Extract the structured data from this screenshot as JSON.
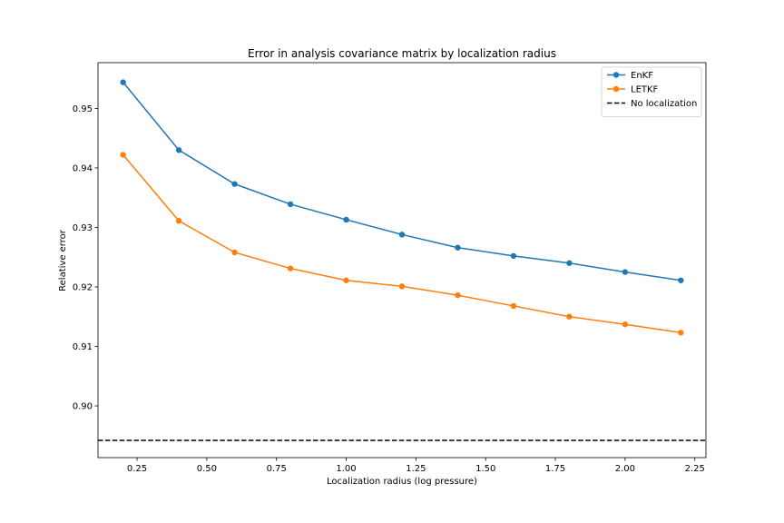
{
  "chart_data": {
    "type": "line",
    "title": "Error in analysis covariance matrix by localization radius",
    "xlabel": "Localization radius (log pressure)",
    "ylabel": "Relative error",
    "xlim": [
      0.11,
      2.29
    ],
    "ylim": [
      0.8913,
      0.9577
    ],
    "xticks": [
      0.25,
      0.5,
      0.75,
      1.0,
      1.25,
      1.5,
      1.75,
      2.0,
      2.25
    ],
    "xtick_labels": [
      "0.25",
      "0.50",
      "0.75",
      "1.00",
      "1.25",
      "1.50",
      "1.75",
      "2.00",
      "2.25"
    ],
    "yticks": [
      0.9,
      0.91,
      0.92,
      0.93,
      0.94,
      0.95
    ],
    "ytick_labels": [
      "0.90",
      "0.91",
      "0.92",
      "0.93",
      "0.94",
      "0.95"
    ],
    "grid": false,
    "legend_position": "upper right",
    "x": [
      0.2,
      0.4,
      0.6,
      0.8,
      1.0,
      1.2,
      1.4,
      1.6,
      1.8,
      2.0,
      2.2
    ],
    "series": [
      {
        "name": "EnKF",
        "color": "#1f77b4",
        "marker": "circle",
        "values": [
          0.9544,
          0.943,
          0.9373,
          0.9339,
          0.9313,
          0.9288,
          0.9266,
          0.9252,
          0.924,
          0.9225,
          0.9211
        ]
      },
      {
        "name": "LETKF",
        "color": "#ff7f0e",
        "marker": "circle",
        "values": [
          0.9422,
          0.9311,
          0.9258,
          0.9231,
          0.9211,
          0.9201,
          0.9186,
          0.9168,
          0.915,
          0.9137,
          0.9123
        ]
      }
    ],
    "reference_lines": [
      {
        "name": "No localization",
        "y": 0.8942,
        "color": "#000000",
        "style": "dashed"
      }
    ]
  }
}
